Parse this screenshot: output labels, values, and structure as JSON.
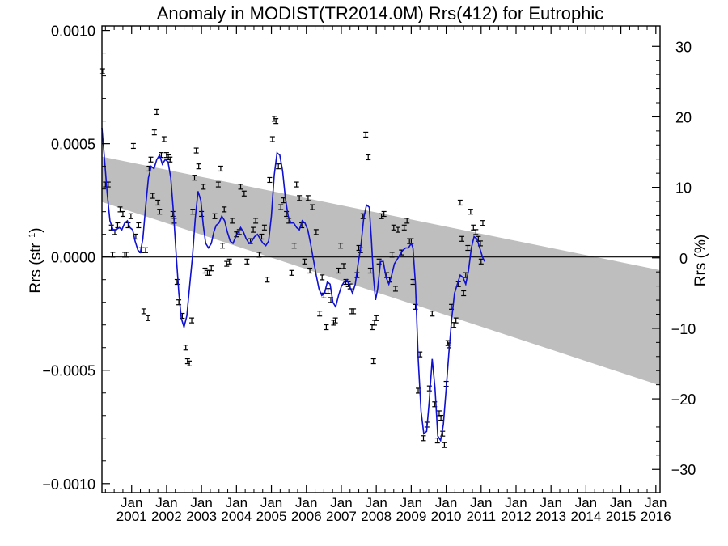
{
  "chart_data": {
    "type": "scatter",
    "title": "Anomaly in MODIST(TR2014.0M) Rrs(412) for Eutrophic",
    "ylabel_left_prefix": "Rrs (str",
    "ylabel_left_sup": "−1",
    "ylabel_left_suffix": ")",
    "ylabel_right": "Rrs (%)",
    "xlim": [
      2000.15,
      2016.12
    ],
    "ylim_left": [
      -0.00104,
      0.00102
    ],
    "ylim_right": [
      -33.3,
      32.9
    ],
    "left_ticks": [
      {
        "v": 0.001,
        "label": "0.0010"
      },
      {
        "v": 0.0005,
        "label": "0.0005"
      },
      {
        "v": 0.0,
        "label": "0.0000"
      },
      {
        "v": -0.0005,
        "label": "−0.0005"
      },
      {
        "v": -0.001,
        "label": "−0.0010"
      }
    ],
    "right_ticks": [
      {
        "v": 30,
        "label": "30"
      },
      {
        "v": 20,
        "label": "20"
      },
      {
        "v": 10,
        "label": "10"
      },
      {
        "v": 0,
        "label": "0"
      },
      {
        "v": -10,
        "label": "−10"
      },
      {
        "v": -20,
        "label": "−20"
      },
      {
        "v": -30,
        "label": "−30"
      }
    ],
    "x_ticks": [
      {
        "v": 2001.0,
        "month": "Jan",
        "year": "2001"
      },
      {
        "v": 2002.0,
        "month": "Jan",
        "year": "2002"
      },
      {
        "v": 2003.0,
        "month": "Jan",
        "year": "2003"
      },
      {
        "v": 2004.0,
        "month": "Jan",
        "year": "2004"
      },
      {
        "v": 2005.0,
        "month": "Jan",
        "year": "2005"
      },
      {
        "v": 2006.0,
        "month": "Jan",
        "year": "2006"
      },
      {
        "v": 2007.0,
        "month": "Jan",
        "year": "2007"
      },
      {
        "v": 2008.0,
        "month": "Jan",
        "year": "2008"
      },
      {
        "v": 2009.0,
        "month": "Jan",
        "year": "2009"
      },
      {
        "v": 2010.0,
        "month": "Jan",
        "year": "2010"
      },
      {
        "v": 2011.0,
        "month": "Jan",
        "year": "2011"
      },
      {
        "v": 2012.0,
        "month": "Jan",
        "year": "2012"
      },
      {
        "v": 2013.0,
        "month": "Jan",
        "year": "2013"
      },
      {
        "v": 2014.0,
        "month": "Jan",
        "year": "2014"
      },
      {
        "v": 2015.0,
        "month": "Jan",
        "year": "2015"
      },
      {
        "v": 2016.0,
        "month": "Jan",
        "year": "2016"
      }
    ],
    "zero_line": 0.0,
    "trend_band": {
      "upper_start": 0.000443,
      "upper_end": -5.8e-05,
      "lower_start": 0.000243,
      "lower_end": -0.000567,
      "color": "#bebebe"
    },
    "colors": {
      "smooth": "#1010d0",
      "points": "#000000",
      "zero": "#000000",
      "band": "#bebebe"
    },
    "points": [
      [
        2000.17,
        0.00082
      ],
      [
        2000.25,
        0.00032
      ],
      [
        2000.33,
        0.00032
      ],
      [
        2000.42,
        0.00013
      ],
      [
        2000.46,
        1e-05
      ],
      [
        2000.52,
        0.00011
      ],
      [
        2000.6,
        0.00014
      ],
      [
        2000.67,
        0.00021
      ],
      [
        2000.75,
        0.00019
      ],
      [
        2000.8,
        1e-05
      ],
      [
        2000.85,
        1e-05
      ],
      [
        2000.9,
        0.00014
      ],
      [
        2000.98,
        0.00018
      ],
      [
        2001.05,
        0.00049
      ],
      [
        2001.12,
        9e-05
      ],
      [
        2001.2,
        0.00014
      ],
      [
        2001.28,
        3e-05
      ],
      [
        2001.4,
        3e-05
      ],
      [
        2001.5,
        0.00039
      ],
      [
        2001.55,
        0.00043
      ],
      [
        2001.65,
        0.00055
      ],
      [
        2001.72,
        0.00064
      ],
      [
        2001.35,
        -0.00024
      ],
      [
        2001.47,
        -0.00027
      ],
      [
        2001.85,
        0.00045
      ],
      [
        2001.93,
        0.00052
      ],
      [
        2002.0,
        0.00045
      ],
      [
        2002.05,
        0.00044
      ],
      [
        2002.1,
        0.00043
      ],
      [
        2001.6,
        0.00027
      ],
      [
        2001.75,
        0.00024
      ],
      [
        2001.8,
        0.0002
      ],
      [
        2002.18,
        0.00019
      ],
      [
        2002.22,
        0.00016
      ],
      [
        2002.3,
        -0.00011
      ],
      [
        2002.35,
        -0.0002
      ],
      [
        2002.45,
        -0.00026
      ],
      [
        2002.55,
        -0.0004
      ],
      [
        2002.6,
        -0.00046
      ],
      [
        2002.65,
        -0.00047
      ],
      [
        2002.72,
        -0.00028
      ],
      [
        2002.75,
        0.0002
      ],
      [
        2002.8,
        0.00035
      ],
      [
        2002.85,
        0.00047
      ],
      [
        2002.92,
        0.0004
      ],
      [
        2003.0,
        0.00019
      ],
      [
        2003.05,
        0.00031
      ],
      [
        2003.1,
        -6e-05
      ],
      [
        2003.17,
        -7e-05
      ],
      [
        2003.22,
        -7e-05
      ],
      [
        2003.28,
        -5e-05
      ],
      [
        2003.38,
        0.00018
      ],
      [
        2003.48,
        0.00032
      ],
      [
        2003.55,
        0.00039
      ],
      [
        2003.6,
        5e-05
      ],
      [
        2003.65,
        0.00021
      ],
      [
        2003.72,
        -3e-05
      ],
      [
        2003.8,
        -2e-05
      ],
      [
        2003.88,
        0.00016
      ],
      [
        2004.0,
        0.0001
      ],
      [
        2004.08,
        0.00011
      ],
      [
        2004.12,
        0.00031
      ],
      [
        2004.22,
        0.00028
      ],
      [
        2004.3,
        -2e-05
      ],
      [
        2004.4,
        7e-05
      ],
      [
        2004.48,
        0.00012
      ],
      [
        2004.55,
        0.00016
      ],
      [
        2004.65,
        1e-05
      ],
      [
        2004.72,
        9e-05
      ],
      [
        2004.8,
        0.00013
      ],
      [
        2004.88,
        -0.0001
      ],
      [
        2004.95,
        0.00034
      ],
      [
        2005.03,
        0.00052
      ],
      [
        2005.08,
        0.00061
      ],
      [
        2005.13,
        0.0006
      ],
      [
        2005.2,
        0.0004
      ],
      [
        2005.27,
        0.00022
      ],
      [
        2005.35,
        0.00025
      ],
      [
        2005.43,
        0.00019
      ],
      [
        2005.5,
        0.00016
      ],
      [
        2005.58,
        -7e-05
      ],
      [
        2005.65,
        5e-05
      ],
      [
        2005.72,
        0.00032
      ],
      [
        2005.8,
        0.00026
      ],
      [
        2005.87,
        0.00014
      ],
      [
        2005.95,
        -2e-05
      ],
      [
        2006.05,
        0.00026
      ],
      [
        2006.1,
        -6e-05
      ],
      [
        2006.17,
        0.00022
      ],
      [
        2006.28,
        0.00011
      ],
      [
        2006.38,
        -0.00025
      ],
      [
        2006.45,
        -9e-05
      ],
      [
        2006.5,
        -0.00017
      ],
      [
        2006.57,
        -0.00031
      ],
      [
        2006.62,
        -0.00015
      ],
      [
        2006.7,
        -0.00019
      ],
      [
        2006.78,
        -0.00029
      ],
      [
        2006.83,
        -0.00028
      ],
      [
        2006.92,
        -6e-05
      ],
      [
        2006.98,
        5e-05
      ],
      [
        2007.07,
        -4e-05
      ],
      [
        2007.13,
        -0.00011
      ],
      [
        2007.2,
        -0.00012
      ],
      [
        2007.25,
        -0.00013
      ],
      [
        2007.3,
        -0.00024
      ],
      [
        2007.35,
        -0.00024
      ],
      [
        2007.45,
        -8e-05
      ],
      [
        2007.5,
        4e-05
      ],
      [
        2007.55,
        3e-05
      ],
      [
        2007.62,
        0.00018
      ],
      [
        2007.7,
        0.00054
      ],
      [
        2007.77,
        0.00044
      ],
      [
        2007.83,
        -6e-05
      ],
      [
        2007.88,
        -0.00031
      ],
      [
        2007.92,
        -0.00046
      ],
      [
        2007.95,
        -0.00029
      ],
      [
        2008.0,
        -0.00027
      ],
      [
        2008.08,
        -2e-05
      ],
      [
        2008.15,
        0.00018
      ],
      [
        2008.22,
        0.00019
      ],
      [
        2008.3,
        -8e-05
      ],
      [
        2008.38,
        -0.0001
      ],
      [
        2008.45,
        1e-05
      ],
      [
        2008.5,
        0.00013
      ],
      [
        2008.55,
        -0.00014
      ],
      [
        2008.62,
        0.00012
      ],
      [
        2008.72,
        2e-05
      ],
      [
        2008.8,
        0.00013
      ],
      [
        2008.88,
        0.00016
      ],
      [
        2008.95,
        7e-05
      ],
      [
        2009.0,
        7e-05
      ],
      [
        2009.05,
        -0.00011
      ],
      [
        2009.12,
        -0.00022
      ],
      [
        2009.2,
        -0.00059
      ],
      [
        2009.25,
        -0.00043
      ],
      [
        2009.35,
        -0.0008
      ],
      [
        2009.45,
        -0.00074
      ],
      [
        2009.52,
        -0.00058
      ],
      [
        2009.6,
        -0.00025
      ],
      [
        2009.67,
        -0.00065
      ],
      [
        2009.75,
        -0.00081
      ],
      [
        2009.8,
        -0.00069
      ],
      [
        2009.85,
        -0.00071
      ],
      [
        2009.9,
        -0.00078
      ],
      [
        2009.95,
        -0.00083
      ],
      [
        2010.0,
        -0.00056
      ],
      [
        2010.05,
        -0.00038
      ],
      [
        2010.08,
        -0.00039
      ],
      [
        2010.15,
        -0.00022
      ],
      [
        2010.22,
        -0.0003
      ],
      [
        2010.28,
        -0.00028
      ],
      [
        2010.35,
        -0.00012
      ],
      [
        2010.4,
        0.00024
      ],
      [
        2010.45,
        8e-05
      ],
      [
        2010.5,
        -0.00016
      ],
      [
        2010.56,
        -8e-05
      ],
      [
        2010.62,
        4e-05
      ],
      [
        2010.7,
        0.0002
      ],
      [
        2010.78,
        0.00013
      ],
      [
        2010.85,
        0.00011
      ],
      [
        2010.92,
        8e-05
      ],
      [
        2010.98,
        6e-05
      ],
      [
        2011.0,
        -2e-05
      ],
      [
        2011.05,
        0.00015
      ]
    ],
    "smooth_line": [
      [
        2000.15,
        0.00057
      ],
      [
        2000.22,
        0.00044
      ],
      [
        2000.3,
        0.00028
      ],
      [
        2000.38,
        0.00016
      ],
      [
        2000.47,
        0.00012
      ],
      [
        2000.55,
        0.00012
      ],
      [
        2000.65,
        0.00013
      ],
      [
        2000.72,
        0.00012
      ],
      [
        2000.8,
        0.00015
      ],
      [
        2000.88,
        0.00016
      ],
      [
        2000.95,
        0.00013
      ],
      [
        2001.03,
        0.00012
      ],
      [
        2001.1,
        7e-05
      ],
      [
        2001.18,
        3e-05
      ],
      [
        2001.25,
        2e-05
      ],
      [
        2001.32,
        8e-05
      ],
      [
        2001.4,
        0.00022
      ],
      [
        2001.48,
        0.00035
      ],
      [
        2001.56,
        0.0004
      ],
      [
        2001.64,
        0.00039
      ],
      [
        2001.72,
        0.00043
      ],
      [
        2001.8,
        0.00045
      ],
      [
        2001.88,
        0.00041
      ],
      [
        2001.96,
        0.00043
      ],
      [
        2002.04,
        0.00042
      ],
      [
        2002.12,
        0.00035
      ],
      [
        2002.2,
        0.00019
      ],
      [
        2002.28,
        0.0
      ],
      [
        2002.35,
        -0.00016
      ],
      [
        2002.42,
        -0.00027
      ],
      [
        2002.5,
        -0.00031
      ],
      [
        2002.58,
        -0.00026
      ],
      [
        2002.66,
        -0.00013
      ],
      [
        2002.74,
        0.0
      ],
      [
        2002.82,
        0.00017
      ],
      [
        2002.9,
        0.00029
      ],
      [
        2002.98,
        0.00025
      ],
      [
        2003.05,
        0.00014
      ],
      [
        2003.12,
        6e-05
      ],
      [
        2003.2,
        4e-05
      ],
      [
        2003.28,
        6e-05
      ],
      [
        2003.35,
        0.00011
      ],
      [
        2003.42,
        0.00014
      ],
      [
        2003.5,
        0.00015
      ],
      [
        2003.58,
        0.00018
      ],
      [
        2003.66,
        0.00016
      ],
      [
        2003.74,
        0.00011
      ],
      [
        2003.82,
        7e-05
      ],
      [
        2003.9,
        6e-05
      ],
      [
        2003.98,
        9e-05
      ],
      [
        2004.05,
        0.00011
      ],
      [
        2004.12,
        0.00013
      ],
      [
        2004.2,
        0.00011
      ],
      [
        2004.28,
        8e-05
      ],
      [
        2004.36,
        6e-05
      ],
      [
        2004.44,
        7e-05
      ],
      [
        2004.52,
        9e-05
      ],
      [
        2004.6,
        0.0001
      ],
      [
        2004.68,
        8e-05
      ],
      [
        2004.76,
        6e-05
      ],
      [
        2004.84,
        5e-05
      ],
      [
        2004.92,
        7e-05
      ],
      [
        2005.0,
        0.00018
      ],
      [
        2005.08,
        0.00036
      ],
      [
        2005.16,
        0.00046
      ],
      [
        2005.24,
        0.00045
      ],
      [
        2005.32,
        0.00038
      ],
      [
        2005.4,
        0.00026
      ],
      [
        2005.48,
        0.00018
      ],
      [
        2005.56,
        0.00015
      ],
      [
        2005.64,
        0.00015
      ],
      [
        2005.72,
        0.00013
      ],
      [
        2005.8,
        0.00012
      ],
      [
        2005.88,
        0.00016
      ],
      [
        2005.96,
        0.00015
      ],
      [
        2006.04,
        0.00012
      ],
      [
        2006.12,
        6e-05
      ],
      [
        2006.2,
        -1e-05
      ],
      [
        2006.28,
        -8e-05
      ],
      [
        2006.36,
        -0.00014
      ],
      [
        2006.44,
        -0.00017
      ],
      [
        2006.52,
        -0.00016
      ],
      [
        2006.6,
        -0.00011
      ],
      [
        2006.68,
        -0.00012
      ],
      [
        2006.76,
        -0.0002
      ],
      [
        2006.84,
        -0.00022
      ],
      [
        2006.92,
        -0.00017
      ],
      [
        2007.0,
        -0.00013
      ],
      [
        2007.08,
        -0.00011
      ],
      [
        2007.16,
        -0.0001
      ],
      [
        2007.24,
        -0.00013
      ],
      [
        2007.32,
        -0.00016
      ],
      [
        2007.4,
        -0.00012
      ],
      [
        2007.48,
        -3e-05
      ],
      [
        2007.56,
        5e-05
      ],
      [
        2007.64,
        0.00017
      ],
      [
        2007.72,
        0.00023
      ],
      [
        2007.8,
        0.00022
      ],
      [
        2007.86,
        8e-05
      ],
      [
        2007.92,
        -9e-05
      ],
      [
        2007.98,
        -0.00019
      ],
      [
        2008.04,
        -0.00014
      ],
      [
        2008.12,
        -2e-05
      ],
      [
        2008.2,
        -2e-05
      ],
      [
        2008.28,
        -9e-05
      ],
      [
        2008.36,
        -0.00012
      ],
      [
        2008.44,
        -8e-05
      ],
      [
        2008.52,
        -3e-05
      ],
      [
        2008.6,
        -1e-05
      ],
      [
        2008.68,
        1e-05
      ],
      [
        2008.76,
        3e-05
      ],
      [
        2008.84,
        4e-05
      ],
      [
        2008.92,
        4e-05
      ],
      [
        2009.0,
        6e-05
      ],
      [
        2009.05,
        4e-05
      ],
      [
        2009.12,
        -0.00012
      ],
      [
        2009.2,
        -0.00045
      ],
      [
        2009.28,
        -0.00068
      ],
      [
        2009.36,
        -0.00078
      ],
      [
        2009.44,
        -0.00077
      ],
      [
        2009.52,
        -0.00063
      ],
      [
        2009.6,
        -0.00045
      ],
      [
        2009.68,
        -0.00058
      ],
      [
        2009.76,
        -0.00079
      ],
      [
        2009.84,
        -0.00081
      ],
      [
        2009.92,
        -0.00074
      ],
      [
        2010.0,
        -0.00058
      ],
      [
        2010.08,
        -0.00042
      ],
      [
        2010.16,
        -0.00027
      ],
      [
        2010.24,
        -0.00016
      ],
      [
        2010.32,
        -0.00012
      ],
      [
        2010.4,
        -8e-05
      ],
      [
        2010.48,
        -9e-05
      ],
      [
        2010.56,
        -0.00012
      ],
      [
        2010.64,
        -6e-05
      ],
      [
        2010.72,
        4e-05
      ],
      [
        2010.8,
        9e-05
      ],
      [
        2010.88,
        8e-05
      ],
      [
        2010.96,
        4e-05
      ],
      [
        2011.04,
        -0.0
      ],
      [
        2011.1,
        -2e-05
      ]
    ]
  }
}
